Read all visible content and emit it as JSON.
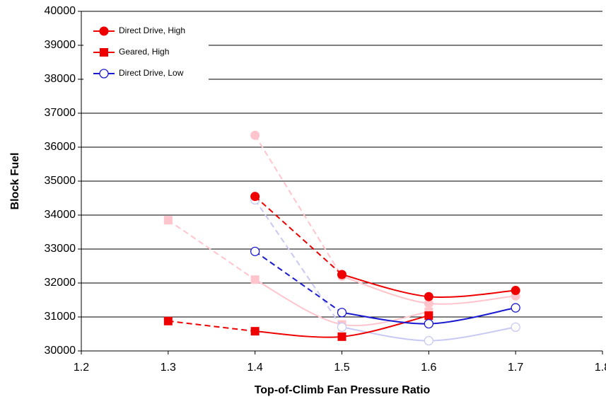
{
  "chart_data": {
    "type": "line",
    "x_label": "Top-of-Climb Fan Pressure Ratio",
    "y_label": "Block Fuel",
    "xlim": [
      1.2,
      1.8
    ],
    "xticks": [
      1.2,
      1.3,
      1.4,
      1.5,
      1.6,
      1.7,
      1.8
    ],
    "ylim": [
      30000,
      40000
    ],
    "yticks": [
      30000,
      31000,
      32000,
      33000,
      34000,
      35000,
      36000,
      37000,
      38000,
      39000,
      40000
    ],
    "grid": true,
    "legend": "upper-left",
    "first_segment_dashed": true,
    "smooth": true,
    "series": [
      {
        "color": "#ffc4cc",
        "marker": "circle",
        "x": [
          1.4,
          1.5,
          1.6,
          1.7
        ],
        "values": [
          36350,
          32200,
          31400,
          31620
        ]
      },
      {
        "color": "#ffc4cc",
        "marker": "square",
        "x": [
          1.3,
          1.4,
          1.5,
          1.6
        ],
        "values": [
          33850,
          32100,
          30780,
          31150
        ]
      },
      {
        "color": "#c8c8f4",
        "marker": "open-circle",
        "x": [
          1.4,
          1.5,
          1.6,
          1.7
        ],
        "values": [
          34450,
          30700,
          30300,
          30700
        ]
      },
      {
        "name": "Direct Drive, High",
        "color": "#ee0000",
        "marker": "circle",
        "x": [
          1.4,
          1.5,
          1.6,
          1.7
        ],
        "values": [
          34550,
          32250,
          31600,
          31780
        ]
      },
      {
        "name": "Geared, High",
        "color": "#ee0000",
        "marker": "square",
        "x": [
          1.3,
          1.4,
          1.5,
          1.6
        ],
        "values": [
          30880,
          30580,
          30420,
          31040
        ]
      },
      {
        "name": "Direct Drive, Low",
        "color": "#1a1ad0",
        "marker": "open-circle",
        "x": [
          1.4,
          1.5,
          1.6,
          1.7
        ],
        "values": [
          32930,
          31130,
          30800,
          31270
        ]
      }
    ]
  }
}
